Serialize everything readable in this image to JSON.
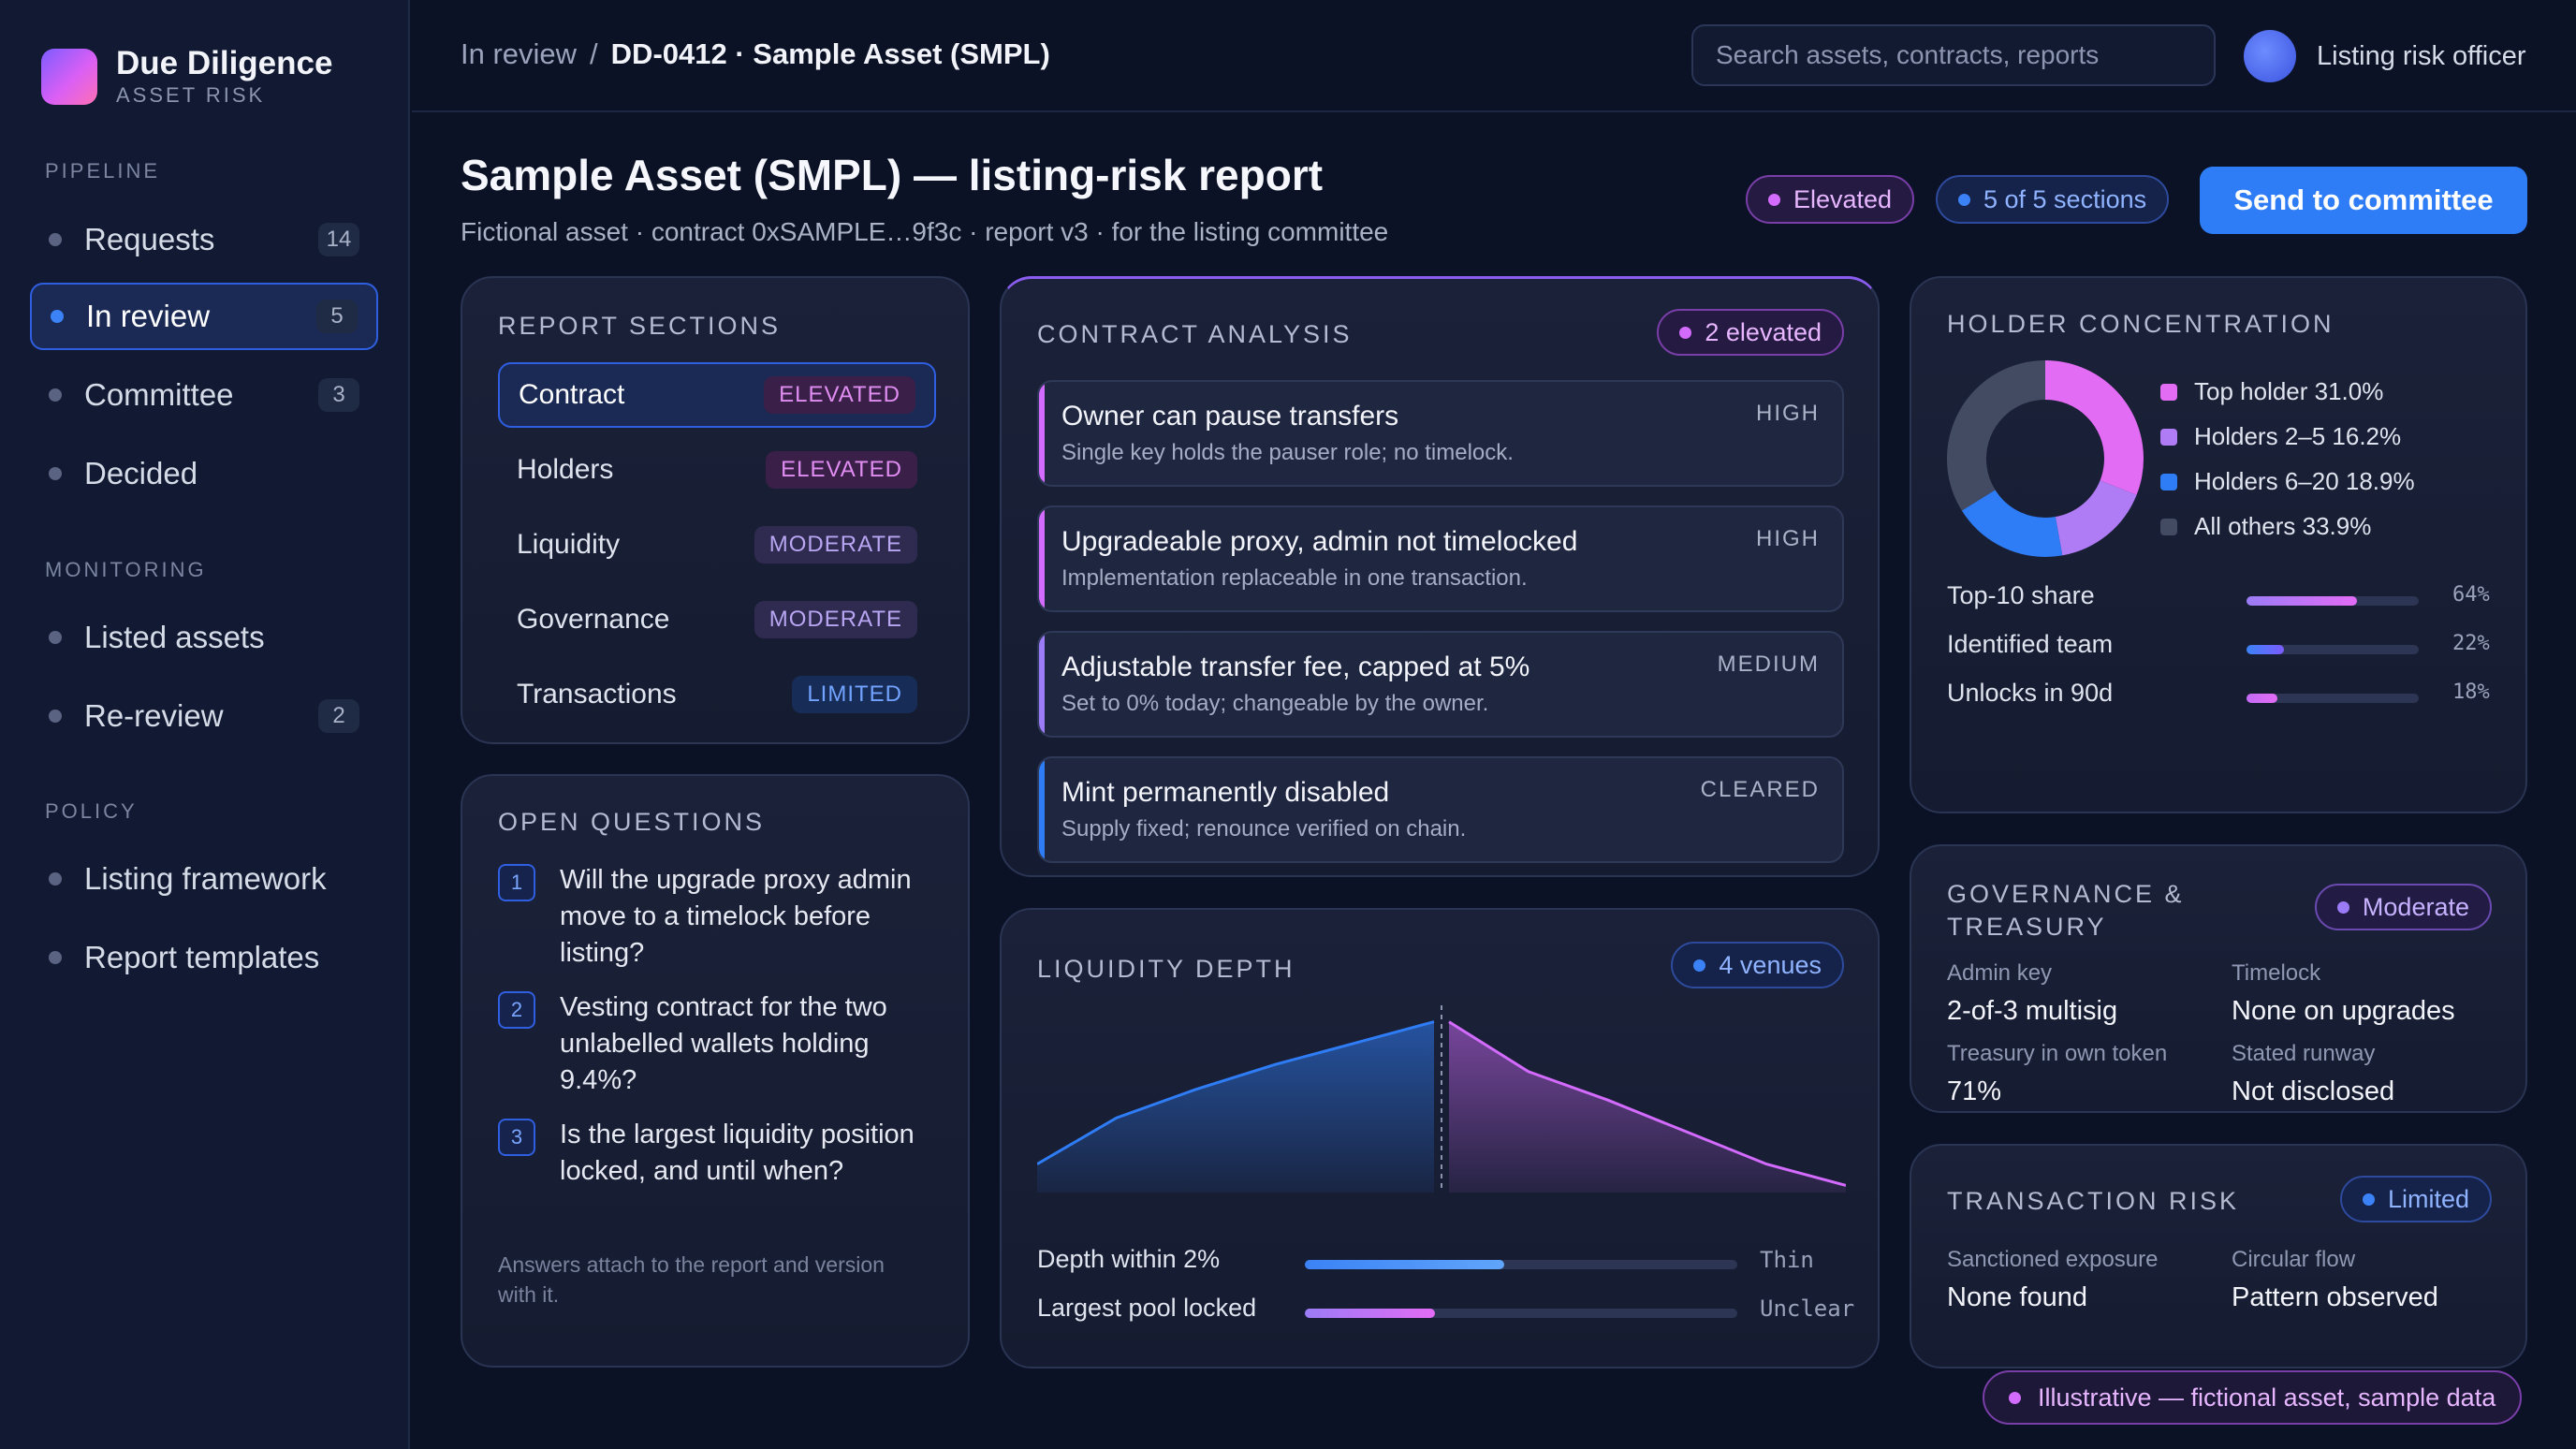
{
  "brand": {
    "title": "Due Diligence",
    "subtitle": "ASSET RISK"
  },
  "sidebar": {
    "pipeline_label": "PIPELINE",
    "pipeline": [
      {
        "label": "Requests",
        "count": "14"
      },
      {
        "label": "In review",
        "count": "5",
        "active": true
      },
      {
        "label": "Committee",
        "count": "3"
      },
      {
        "label": "Decided",
        "count": ""
      }
    ],
    "monitoring_label": "MONITORING",
    "monitoring": [
      {
        "label": "Listed assets",
        "count": ""
      },
      {
        "label": "Re-review",
        "count": "2"
      }
    ],
    "policy_label": "POLICY",
    "policy": [
      {
        "label": "Listing framework"
      },
      {
        "label": "Report templates"
      }
    ]
  },
  "topbar": {
    "breadcrumb_parent": "In review",
    "breadcrumb_sep": "/",
    "breadcrumb_current": "DD-0412 · Sample Asset (SMPL)",
    "search_placeholder": "Search assets, contracts, reports",
    "user_role": "Listing risk officer"
  },
  "header": {
    "title": "Sample Asset (SMPL) — listing-risk report",
    "subtitle": "Fictional asset · contract 0xSAMPLE…9f3c · report v3 · for the listing committee",
    "risk_pill": "Elevated",
    "sections_pill": "5 of 5 sections",
    "send_button": "Send to committee"
  },
  "report_sections": {
    "title": "REPORT SECTIONS",
    "rows": [
      {
        "label": "Contract",
        "badge": "ELEVATED",
        "level": "elevated",
        "active": true
      },
      {
        "label": "Holders",
        "badge": "ELEVATED",
        "level": "elevated"
      },
      {
        "label": "Liquidity",
        "badge": "MODERATE",
        "level": "moderate"
      },
      {
        "label": "Governance",
        "badge": "MODERATE",
        "level": "moderate"
      },
      {
        "label": "Transactions",
        "badge": "LIMITED",
        "level": "limited"
      }
    ]
  },
  "open_questions": {
    "title": "OPEN QUESTIONS",
    "items": [
      {
        "num": "1",
        "text": "Will the upgrade proxy admin move to a timelock before listing?"
      },
      {
        "num": "2",
        "text": "Vesting contract for the two unlabelled wallets holding 9.4%?"
      },
      {
        "num": "3",
        "text": "Is the largest liquidity position locked, and until when?"
      }
    ],
    "note": "Answers attach to the report and version with it."
  },
  "contract_analysis": {
    "title": "CONTRACT ANALYSIS",
    "count_pill": "2 elevated",
    "findings": [
      {
        "title": "Owner can pause transfers",
        "desc": "Single key holds the pauser role; no timelock.",
        "severity": "HIGH",
        "color": "#d46bff"
      },
      {
        "title": "Upgradeable proxy, admin not timelocked",
        "desc": "Implementation replaceable in one transaction.",
        "severity": "HIGH",
        "color": "#d46bff"
      },
      {
        "title": "Adjustable transfer fee, capped at 5%",
        "desc": "Set to 0% today; changeable by the owner.",
        "severity": "MEDIUM",
        "color": "#9b7cf6"
      },
      {
        "title": "Mint permanently disabled",
        "desc": "Supply fixed; renounce verified on chain.",
        "severity": "CLEARED",
        "color": "#2f7df6"
      }
    ]
  },
  "liquidity": {
    "title": "LIQUIDITY DEPTH",
    "count_pill": "4 venues",
    "depth_curve": {
      "bid": [
        0.16,
        0.42,
        0.58,
        0.72,
        0.84,
        0.96
      ],
      "ask": [
        0.96,
        0.68,
        0.52,
        0.34,
        0.16,
        0.04
      ],
      "bid_color": "#2f7df6",
      "ask_color": "#d46bff"
    },
    "rows": [
      {
        "label": "Depth within 2%",
        "status": "Thin",
        "fill_pct": 46,
        "fill_from": "#3b82f6",
        "fill_to": "#60a5fa"
      },
      {
        "label": "Largest pool locked",
        "status": "Unclear",
        "fill_pct": 30,
        "fill_from": "#9b7cf6",
        "fill_to": "#e36cf5"
      }
    ]
  },
  "holders": {
    "title": "HOLDER CONCENTRATION",
    "segments": [
      {
        "label": "Top holder 31.0%",
        "value": 31.0,
        "color": "#e36cf5"
      },
      {
        "label": "Holders 2–5 16.2%",
        "value": 16.2,
        "color": "#b07cf6"
      },
      {
        "label": "Holders 6–20 18.9%",
        "value": 18.9,
        "color": "#2f7df6"
      },
      {
        "label": "All others 33.9%",
        "value": 33.9,
        "color": "#434b63"
      }
    ],
    "metrics": [
      {
        "label": "Top-10 share",
        "value": "64%",
        "pct": 64,
        "fill_from": "#9b7cf6",
        "fill_to": "#e36cf5"
      },
      {
        "label": "Identified team",
        "value": "22%",
        "pct": 22,
        "fill_from": "#3b82f6",
        "fill_to": "#7c5cff"
      },
      {
        "label": "Unlocks in 90d",
        "value": "18%",
        "pct": 18,
        "fill_from": "#c46bf5",
        "fill_to": "#e36cf5"
      }
    ]
  },
  "governance": {
    "title_line1": "GOVERNANCE &",
    "title_line2": "TREASURY",
    "pill": "Moderate",
    "fields": [
      {
        "label": "Admin key",
        "value": "2-of-3 multisig"
      },
      {
        "label": "Timelock",
        "value": "None on upgrades"
      },
      {
        "label": "Treasury in own token",
        "value": "71%"
      },
      {
        "label": "Stated runway",
        "value": "Not disclosed"
      }
    ]
  },
  "transaction_risk": {
    "title": "TRANSACTION RISK",
    "pill": "Limited",
    "fields": [
      {
        "label": "Sanctioned exposure",
        "value": "None found"
      },
      {
        "label": "Circular flow",
        "value": "Pattern observed"
      }
    ]
  },
  "footer_pill": "Illustrative — fictional asset, sample data"
}
